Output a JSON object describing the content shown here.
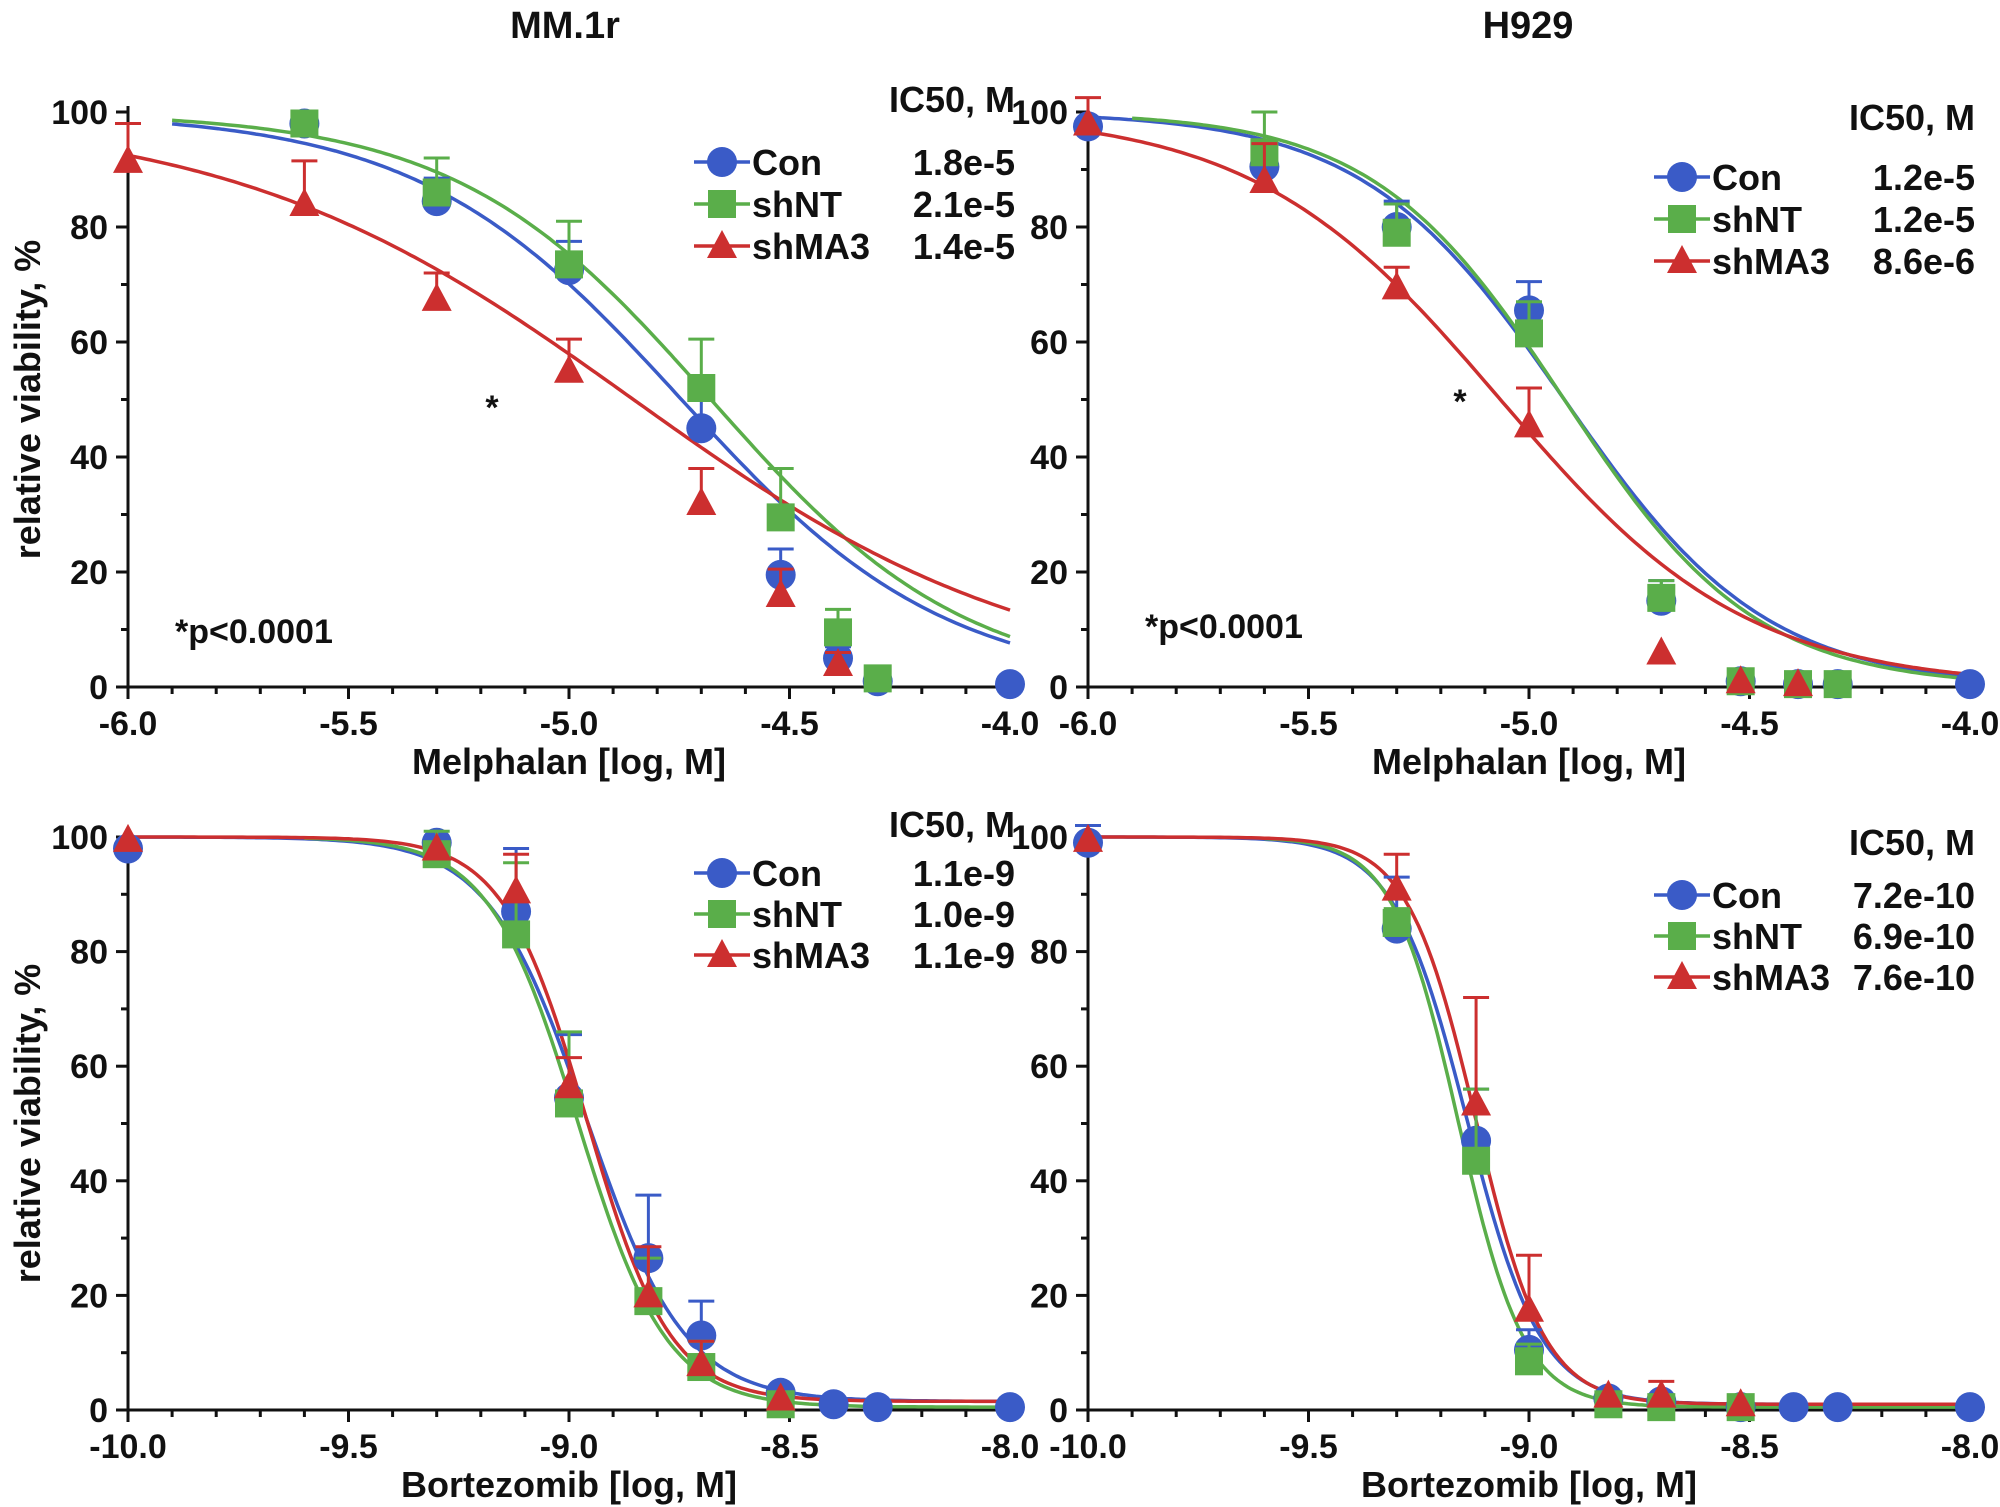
{
  "figure": {
    "column_titles": [
      "MM.1r",
      "H929"
    ]
  },
  "colors": {
    "Con": "#3a5bc7",
    "shNT": "#5aae4a",
    "shMA3": "#cc2f2f"
  },
  "chart_data": [
    {
      "type": "scatter",
      "panel": "MM.1r / Melphalan",
      "title": "MM.1r",
      "xlabel": "Melphalan [log, M]",
      "ylabel": "relative viability, %",
      "xlim": [
        -6.0,
        -4.0
      ],
      "ylim": [
        0,
        100
      ],
      "xticks": [
        "-6.0",
        "-5.5",
        "-5.0",
        "-4.5",
        "-4.0"
      ],
      "yticks": [
        "0",
        "20",
        "40",
        "60",
        "80",
        "100"
      ],
      "legend_title": "IC50, M",
      "legend_position": "top-right",
      "annotation": "*p<0.0001",
      "star_marker": "*",
      "series": [
        {
          "name": "Con",
          "marker": "circle",
          "ic50_label": "1.8e-5",
          "logIC50": -4.745,
          "hill": 1.45,
          "bottom": 0,
          "top": 100,
          "x": [
            -5.6,
            -5.3,
            -5.0,
            -4.7,
            -4.52,
            -4.39,
            -4.3,
            -4.0
          ],
          "y": [
            98,
            84.5,
            72.5,
            45,
            19.5,
            5,
            1,
            0.5
          ],
          "err": [
            1,
            4,
            5,
            5,
            4.5,
            2,
            1,
            0.5
          ]
        },
        {
          "name": "shNT",
          "marker": "square",
          "ic50_label": "2.1e-5",
          "logIC50": -4.678,
          "hill": 1.5,
          "bottom": 0,
          "top": 100,
          "x": [
            -5.6,
            -5.3,
            -5.0,
            -4.7,
            -4.52,
            -4.39,
            -4.3
          ],
          "y": [
            98,
            86,
            73.5,
            52,
            29.5,
            9.5,
            1.5
          ],
          "err": [
            1.5,
            6,
            7.5,
            8.5,
            8.5,
            4,
            1.5
          ]
        },
        {
          "name": "shMA3",
          "marker": "triangle",
          "ic50_label": "1.4e-5",
          "logIC50": -4.854,
          "hill": 0.95,
          "bottom": 0,
          "top": 100,
          "x": [
            -6.0,
            -5.6,
            -5.3,
            -5.0,
            -4.7,
            -4.52,
            -4.39
          ],
          "y": [
            91.5,
            84,
            67.5,
            55,
            32,
            16,
            4
          ],
          "err": [
            6.5,
            7.5,
            4.5,
            5.5,
            6,
            4.5,
            2
          ]
        }
      ]
    },
    {
      "type": "scatter",
      "panel": "H929 / Melphalan",
      "title": "H929",
      "xlabel": "Melphalan [log, M]",
      "ylabel": "",
      "xlim": [
        -6.0,
        -4.0
      ],
      "ylim": [
        0,
        100
      ],
      "xticks": [
        "-6.0",
        "-5.5",
        "-5.0",
        "-4.5",
        "-4.0"
      ],
      "yticks": [
        "0",
        "20",
        "40",
        "60",
        "80",
        "100"
      ],
      "legend_title": "IC50, M",
      "legend_position": "top-right",
      "annotation": "*p<0.0001",
      "star_marker": "*",
      "series": [
        {
          "name": "Con",
          "marker": "circle",
          "ic50_label": "1.2e-5",
          "logIC50": -4.92,
          "hill": 1.9,
          "bottom": 0,
          "top": 100,
          "x": [
            -6.0,
            -5.6,
            -5.3,
            -5.0,
            -4.7,
            -4.52,
            -4.39,
            -4.3,
            -4.0
          ],
          "y": [
            97.5,
            90.5,
            80,
            65.5,
            15,
            1,
            0.5,
            0.5,
            0.5
          ],
          "err": [
            1,
            4,
            4.5,
            5,
            3.5,
            1,
            0.5,
            0.5,
            0.5
          ]
        },
        {
          "name": "shNT",
          "marker": "square",
          "ic50_label": "1.2e-5",
          "logIC50": -4.92,
          "hill": 2.0,
          "bottom": 0,
          "top": 100,
          "x": [
            -5.6,
            -5.3,
            -5.0,
            -4.7,
            -4.52,
            -4.39,
            -4.3
          ],
          "y": [
            93,
            79,
            61.5,
            15.5,
            1,
            0.5,
            0.5
          ],
          "err": [
            7,
            5,
            5.5,
            3,
            1,
            0.5,
            0.5
          ]
        },
        {
          "name": "shMA3",
          "marker": "triangle",
          "ic50_label": "8.6e-6",
          "logIC50": -5.065,
          "hill": 1.55,
          "bottom": 0,
          "top": 100,
          "x": [
            -6.0,
            -5.6,
            -5.3,
            -5.0,
            -4.7,
            -4.52,
            -4.39
          ],
          "y": [
            98,
            88,
            69.5,
            45.5,
            6,
            1,
            0.5
          ],
          "err": [
            4.5,
            6.5,
            3.5,
            6.5,
            1,
            0.5,
            0.5
          ]
        }
      ]
    },
    {
      "type": "scatter",
      "panel": "MM.1r / Bortezomib",
      "xlabel": "Bortezomib [log, M]",
      "ylabel": "relative viability, %",
      "xlim": [
        -10.0,
        -8.0
      ],
      "ylim": [
        0,
        100
      ],
      "xticks": [
        "-10.0",
        "-9.5",
        "-9.0",
        "-8.5",
        "-8.0"
      ],
      "yticks": [
        "0",
        "20",
        "40",
        "60",
        "80",
        "100"
      ],
      "legend_title": "IC50, M",
      "legend_position": "top-right",
      "series": [
        {
          "name": "Con",
          "marker": "circle",
          "ic50_label": "1.1e-9",
          "logIC50": -8.96,
          "hill": 3.9,
          "bottom": 1.5,
          "top": 100,
          "x": [
            -10.0,
            -9.3,
            -9.12,
            -9.0,
            -8.82,
            -8.7,
            -8.52,
            -8.4,
            -8.3,
            -8.0
          ],
          "y": [
            98,
            99,
            87,
            54.5,
            26.5,
            13,
            3,
            1,
            0.5,
            0.5
          ],
          "err": [
            1,
            1,
            11,
            11,
            11,
            6,
            1.5,
            0.5,
            0.5,
            0.5
          ]
        },
        {
          "name": "shNT",
          "marker": "square",
          "ic50_label": "1.0e-9",
          "logIC50": -8.98,
          "hill": 4.3,
          "bottom": 0.5,
          "top": 100,
          "x": [
            -9.3,
            -9.12,
            -9.0,
            -8.82,
            -8.7,
            -8.52
          ],
          "y": [
            97,
            83,
            53.5,
            19,
            7.5,
            1
          ],
          "err": [
            4,
            12.5,
            12.5,
            7.5,
            4.5,
            1
          ]
        },
        {
          "name": "shMA3",
          "marker": "triangle",
          "ic50_label": "1.1e-9",
          "logIC50": -8.96,
          "hill": 4.6,
          "bottom": 1.5,
          "top": 100,
          "x": [
            -10.0,
            -9.3,
            -9.12,
            -9.0,
            -8.82,
            -8.7,
            -8.52
          ],
          "y": [
            99.5,
            98,
            90.5,
            56.5,
            20,
            8,
            2
          ],
          "err": [
            1,
            1.5,
            6.5,
            5,
            8.5,
            4,
            1
          ]
        }
      ]
    },
    {
      "type": "scatter",
      "panel": "H929 / Bortezomib",
      "xlabel": "Bortezomib [log, M]",
      "ylabel": "",
      "xlim": [
        -10.0,
        -8.0
      ],
      "ylim": [
        0,
        100
      ],
      "xticks": [
        "-10.0",
        "-9.5",
        "-9.0",
        "-8.5",
        "-8.0"
      ],
      "yticks": [
        "0",
        "20",
        "40",
        "60",
        "80",
        "100"
      ],
      "legend_title": "IC50, M",
      "legend_position": "top-right",
      "series": [
        {
          "name": "Con",
          "marker": "circle",
          "ic50_label": "7.2e-10",
          "logIC50": -9.14,
          "hill": 5.2,
          "bottom": 1,
          "top": 100,
          "x": [
            -10.0,
            -9.3,
            -9.12,
            -9.0,
            -8.82,
            -8.7,
            -8.52,
            -8.4,
            -8.3,
            -8.0
          ],
          "y": [
            99,
            84,
            47,
            10.5,
            2,
            1.5,
            0.5,
            0.5,
            0.5,
            0.5
          ],
          "err": [
            3,
            9,
            9,
            3.5,
            1,
            1,
            0.5,
            0.5,
            0.5,
            0.5
          ]
        },
        {
          "name": "shNT",
          "marker": "square",
          "ic50_label": "6.9e-10",
          "logIC50": -9.16,
          "hill": 5.8,
          "bottom": 0.5,
          "top": 100,
          "x": [
            -9.3,
            -9.12,
            -9.0,
            -8.82,
            -8.7,
            -8.52
          ],
          "y": [
            85,
            43.5,
            8.5,
            1,
            0.5,
            0.5
          ],
          "err": [
            2.5,
            12.5,
            3,
            1,
            0.5,
            0.5
          ]
        },
        {
          "name": "shMA3",
          "marker": "triangle",
          "ic50_label": "7.6e-10",
          "logIC50": -9.12,
          "hill": 5.6,
          "bottom": 1,
          "top": 100,
          "x": [
            -10.0,
            -9.3,
            -9.12,
            -9.0,
            -8.82,
            -8.7,
            -8.52
          ],
          "y": [
            99.5,
            91,
            53.5,
            17.5,
            2.5,
            2.5,
            1
          ],
          "err": [
            1,
            6,
            18.5,
            9.5,
            1,
            2.5,
            0.5
          ]
        }
      ]
    }
  ]
}
